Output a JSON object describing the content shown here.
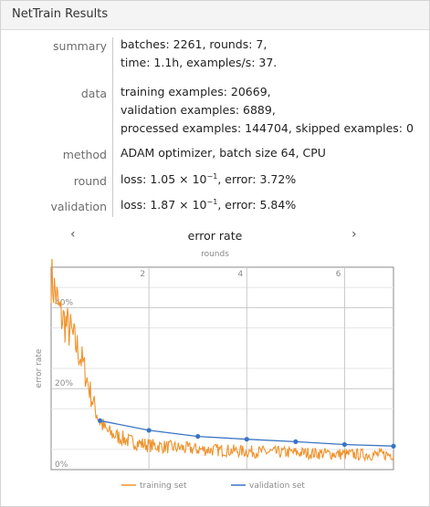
{
  "window": {
    "title": "NetTrain Results"
  },
  "info": [
    {
      "label": "summary",
      "lines": [
        "batches: 2261, rounds: 7,",
        "time: 1.1h, examples/s: 37."
      ]
    },
    {
      "label": "data",
      "lines": [
        "training examples: 20669,",
        "validation examples: 6889,",
        "processed examples: 144704, skipped examples: 0"
      ]
    },
    {
      "label": "method",
      "lines": [
        "ADAM optimizer, batch size 64, CPU"
      ]
    },
    {
      "label": "round",
      "loss_mantissa": "1.05",
      "loss_base": "10",
      "loss_exp": "−1",
      "error": "3.72%"
    },
    {
      "label": "validation",
      "loss_mantissa": "1.87",
      "loss_base": "10",
      "loss_exp": "−1",
      "error": "5.84%"
    }
  ],
  "text": {
    "loss_prefix": "loss: ",
    "times": " × ",
    "error_prefix": ", error: "
  },
  "nav": {
    "prev": "‹",
    "next": "›"
  },
  "chart_data": {
    "type": "line",
    "title": "error rate",
    "xlabel": "rounds",
    "ylabel": "error rate",
    "xlim": [
      0,
      7
    ],
    "ylim": [
      0,
      0.5
    ],
    "x_ticks": [
      2,
      4,
      6
    ],
    "x_tick_labels": [
      "2",
      "4",
      "6"
    ],
    "y_ticks": [
      0,
      0.2,
      0.4
    ],
    "y_tick_labels": [
      "0%",
      "20%",
      "40%"
    ],
    "grid": true,
    "legend_position": "bottom",
    "series": [
      {
        "name": "training set",
        "color": "#f0922b",
        "x": [
          0,
          0.05,
          0.1,
          0.15,
          0.2,
          0.3,
          0.4,
          0.5,
          0.6,
          0.7,
          0.8,
          0.9,
          1.0,
          1.1,
          1.2,
          1.4,
          1.6,
          1.8,
          2.0,
          2.5,
          3.0,
          3.5,
          4.0,
          4.5,
          5.0,
          5.5,
          6.0,
          6.5,
          7.0
        ],
        "y": [
          0.48,
          0.45,
          0.43,
          0.4,
          0.38,
          0.36,
          0.34,
          0.31,
          0.28,
          0.24,
          0.19,
          0.15,
          0.12,
          0.1,
          0.09,
          0.08,
          0.07,
          0.065,
          0.06,
          0.055,
          0.05,
          0.048,
          0.045,
          0.043,
          0.042,
          0.04,
          0.038,
          0.037,
          0.037
        ]
      },
      {
        "name": "validation set",
        "color": "#3a74c4",
        "x": [
          1,
          2,
          3,
          4,
          5,
          6,
          7
        ],
        "y": [
          0.121,
          0.097,
          0.082,
          0.075,
          0.069,
          0.062,
          0.058
        ]
      }
    ]
  }
}
